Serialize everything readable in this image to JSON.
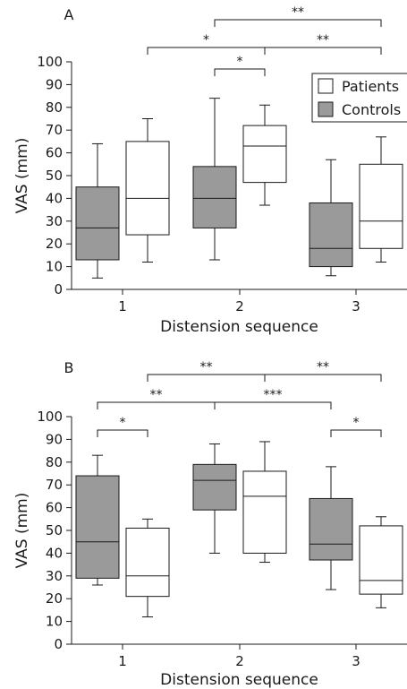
{
  "chart_data": [
    {
      "type": "box",
      "panel_label": "A",
      "xlabel": "Distension sequence",
      "ylabel": "VAS (mm)",
      "ylim": [
        0,
        100
      ],
      "yticks": [
        0,
        10,
        20,
        30,
        40,
        50,
        60,
        70,
        80,
        90,
        100
      ],
      "categories": [
        "1",
        "2",
        "3"
      ],
      "legend": {
        "position": "top-right",
        "entries": [
          "Patients",
          "Controls"
        ]
      },
      "series": [
        {
          "name": "Controls",
          "color": "#9a9a9a",
          "boxes": [
            {
              "min": 5,
              "q1": 13,
              "median": 27,
              "q3": 45,
              "max": 64
            },
            {
              "min": 13,
              "q1": 27,
              "median": 40,
              "q3": 54,
              "max": 84
            },
            {
              "min": 6,
              "q1": 10,
              "median": 18,
              "q3": 38,
              "max": 57
            }
          ]
        },
        {
          "name": "Patients",
          "color": "#ffffff",
          "boxes": [
            {
              "min": 12,
              "q1": 24,
              "median": 40,
              "q3": 65,
              "max": 75
            },
            {
              "min": 37,
              "q1": 47,
              "median": 63,
              "q3": 72,
              "max": 81
            },
            {
              "min": 12,
              "q1": 18,
              "median": 30,
              "q3": 55,
              "max": 67
            }
          ]
        }
      ],
      "significance": [
        {
          "from": "2-Controls",
          "to": "3-Patients",
          "label": "**"
        },
        {
          "from": "1-Patients",
          "to": "2-Patients",
          "label": "*"
        },
        {
          "from": "2-Patients",
          "to": "3-Patients",
          "label": "**"
        },
        {
          "from": "2-Controls",
          "to": "2-Patients",
          "label": "*"
        }
      ]
    },
    {
      "type": "box",
      "panel_label": "B",
      "xlabel": "Distension sequence",
      "ylabel": "VAS (mm)",
      "ylim": [
        0,
        100
      ],
      "yticks": [
        0,
        10,
        20,
        30,
        40,
        50,
        60,
        70,
        80,
        90,
        100
      ],
      "categories": [
        "1",
        "2",
        "3"
      ],
      "series": [
        {
          "name": "Controls",
          "color": "#9a9a9a",
          "boxes": [
            {
              "min": 26,
              "q1": 29,
              "median": 45,
              "q3": 74,
              "max": 83
            },
            {
              "min": 40,
              "q1": 59,
              "median": 72,
              "q3": 79,
              "max": 88
            },
            {
              "min": 24,
              "q1": 37,
              "median": 44,
              "q3": 64,
              "max": 78
            }
          ]
        },
        {
          "name": "Patients",
          "color": "#ffffff",
          "boxes": [
            {
              "min": 12,
              "q1": 21,
              "median": 30,
              "q3": 51,
              "max": 55
            },
            {
              "min": 36,
              "q1": 40,
              "median": 65,
              "q3": 76,
              "max": 89
            },
            {
              "min": 16,
              "q1": 22,
              "median": 28,
              "q3": 52,
              "max": 56
            }
          ]
        }
      ],
      "significance": [
        {
          "from": "1-Patients",
          "to": "2-Patients",
          "label": "**"
        },
        {
          "from": "2-Patients",
          "to": "3-Patients",
          "label": "**"
        },
        {
          "from": "1-Controls",
          "to": "2-Controls",
          "label": "**"
        },
        {
          "from": "2-Controls",
          "to": "3-Controls",
          "label": "***"
        },
        {
          "from": "1-Controls",
          "to": "1-Patients",
          "label": "*"
        },
        {
          "from": "3-Controls",
          "to": "3-Patients",
          "label": "*"
        }
      ]
    }
  ]
}
